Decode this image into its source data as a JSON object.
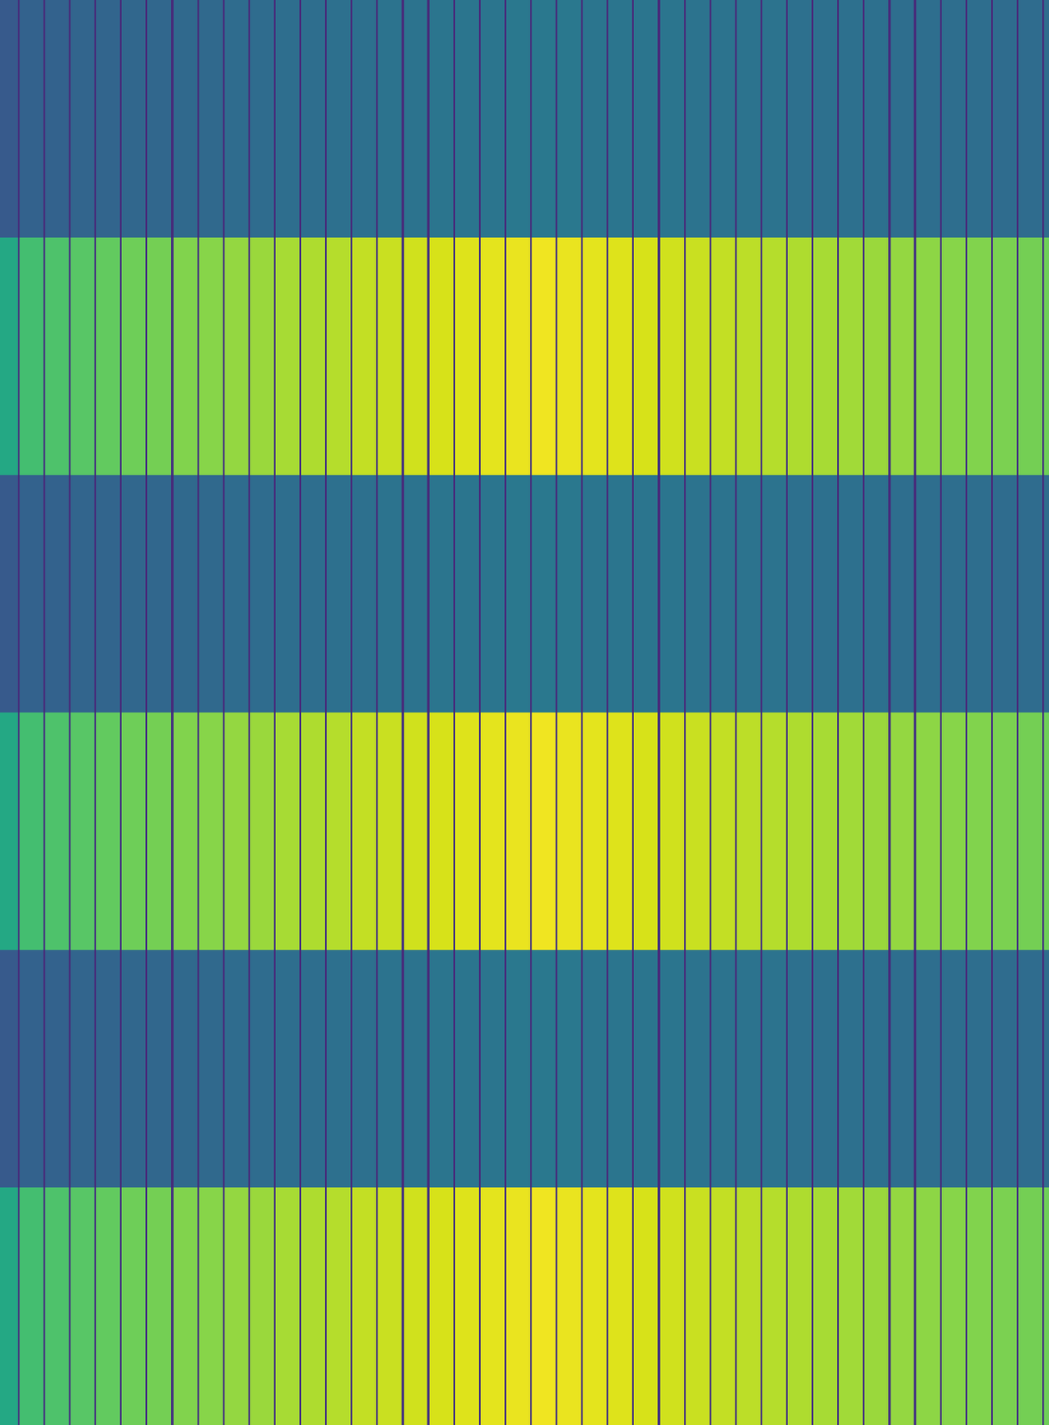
{
  "chart_data": {
    "type": "heatmap",
    "color": "Viridis",
    "tick_labels": false,
    "xlim": [
      0,
      1155
    ],
    "ylim": [
      -0.5,
      5.5
    ],
    "zlim": [
      0,
      1
    ],
    "x": [
      0,
      19.5,
      21.5,
      47.7,
      49.7,
      75.9,
      77.9,
      104.1,
      106.1,
      132.3,
      134.3,
      160.5,
      162.5,
      188.7,
      190.7,
      216.9,
      218.9,
      245.1,
      247.1,
      273.3,
      275.3,
      301.5,
      303.5,
      329.7,
      331.7,
      357.9,
      359.9,
      386.1,
      388.1,
      414.3,
      416.3,
      442.5,
      444.5,
      470.7,
      472.7,
      498.9,
      500.9,
      527.1,
      529.1,
      555.3,
      557.3,
      583.5,
      585.5,
      611.7,
      613.7,
      639.9,
      641.9,
      668.1,
      670.1,
      696.3,
      698.3,
      724.5,
      726.5,
      752.7,
      754.7,
      780.9,
      782.9,
      809.1,
      811.1,
      837.3,
      839.3,
      865.5,
      867.5,
      893.7,
      895.7,
      921.9,
      923.9,
      950.1,
      952.1,
      978.3,
      980.3,
      1006.5,
      1008.5,
      1034.7,
      1036.7,
      1062.9,
      1064.9,
      1091.1,
      1093.1,
      1119.3,
      1121.3,
      1147.5,
      1149.5,
      1155
    ],
    "cells": [
      [
        0.28,
        0.12,
        0.31,
        0.12,
        0.31,
        0.12,
        0.32,
        0.12,
        0.32,
        0.12,
        0.33,
        0.12,
        0.33,
        0.12,
        0.34,
        0.12,
        0.34,
        0.12,
        0.35,
        0.12,
        0.35,
        0.12,
        0.36,
        0.12,
        0.36,
        0.12,
        0.37,
        0.12,
        0.37,
        0.12,
        0.38,
        0.12,
        0.38,
        0.12,
        0.39,
        0.12,
        0.39,
        0.12,
        0.39,
        0.12,
        0.4,
        0.12,
        0.4,
        0.12,
        0.4,
        0.12,
        0.39,
        0.12,
        0.39,
        0.12,
        0.39,
        0.12,
        0.39,
        0.12,
        0.38,
        0.12,
        0.38,
        0.12,
        0.38,
        0.12,
        0.38,
        0.12,
        0.37,
        0.12,
        0.37,
        0.12,
        0.37,
        0.12,
        0.37,
        0.12,
        0.36,
        0.12,
        0.36,
        0.12,
        0.36,
        0.12,
        0.36,
        0.12,
        0.35,
        0.12,
        0.35,
        0.12,
        0.35
      ],
      [
        0.6,
        0.15,
        0.7,
        0.15,
        0.72,
        0.15,
        0.74,
        0.15,
        0.76,
        0.15,
        0.78,
        0.15,
        0.79,
        0.15,
        0.81,
        0.15,
        0.82,
        0.15,
        0.84,
        0.15,
        0.85,
        0.15,
        0.87,
        0.15,
        0.88,
        0.15,
        0.89,
        0.15,
        0.91,
        0.15,
        0.92,
        0.15,
        0.93,
        0.15,
        0.94,
        0.15,
        0.95,
        0.15,
        0.96,
        0.15,
        0.97,
        0.15,
        0.98,
        0.15,
        0.97,
        0.15,
        0.96,
        0.15,
        0.95,
        0.15,
        0.94,
        0.15,
        0.93,
        0.15,
        0.92,
        0.15,
        0.91,
        0.15,
        0.9,
        0.15,
        0.89,
        0.15,
        0.88,
        0.15,
        0.87,
        0.15,
        0.86,
        0.15,
        0.85,
        0.15,
        0.84,
        0.15,
        0.83,
        0.15,
        0.82,
        0.15,
        0.81,
        0.15,
        0.8,
        0.15,
        0.79,
        0.15,
        0.78
      ],
      [
        0.28,
        0.12,
        0.31,
        0.12,
        0.31,
        0.12,
        0.32,
        0.12,
        0.32,
        0.12,
        0.33,
        0.12,
        0.33,
        0.12,
        0.34,
        0.12,
        0.34,
        0.12,
        0.35,
        0.12,
        0.35,
        0.12,
        0.36,
        0.12,
        0.36,
        0.12,
        0.37,
        0.12,
        0.37,
        0.12,
        0.38,
        0.12,
        0.38,
        0.12,
        0.39,
        0.12,
        0.39,
        0.12,
        0.39,
        0.12,
        0.4,
        0.12,
        0.4,
        0.12,
        0.4,
        0.12,
        0.39,
        0.12,
        0.39,
        0.12,
        0.39,
        0.12,
        0.39,
        0.12,
        0.38,
        0.12,
        0.38,
        0.12,
        0.38,
        0.12,
        0.38,
        0.12,
        0.37,
        0.12,
        0.37,
        0.12,
        0.37,
        0.12,
        0.37,
        0.12,
        0.36,
        0.12,
        0.36,
        0.12,
        0.36,
        0.12,
        0.36,
        0.12,
        0.35,
        0.12,
        0.35,
        0.12,
        0.35
      ],
      [
        0.6,
        0.15,
        0.7,
        0.15,
        0.72,
        0.15,
        0.74,
        0.15,
        0.76,
        0.15,
        0.78,
        0.15,
        0.79,
        0.15,
        0.81,
        0.15,
        0.82,
        0.15,
        0.84,
        0.15,
        0.85,
        0.15,
        0.87,
        0.15,
        0.88,
        0.15,
        0.89,
        0.15,
        0.91,
        0.15,
        0.92,
        0.15,
        0.93,
        0.15,
        0.94,
        0.15,
        0.95,
        0.15,
        0.96,
        0.15,
        0.97,
        0.15,
        0.98,
        0.15,
        0.97,
        0.15,
        0.96,
        0.15,
        0.95,
        0.15,
        0.94,
        0.15,
        0.93,
        0.15,
        0.92,
        0.15,
        0.91,
        0.15,
        0.9,
        0.15,
        0.89,
        0.15,
        0.88,
        0.15,
        0.87,
        0.15,
        0.86,
        0.15,
        0.85,
        0.15,
        0.84,
        0.15,
        0.83,
        0.15,
        0.82,
        0.15,
        0.81,
        0.15,
        0.8,
        0.15,
        0.79,
        0.15,
        0.78
      ],
      [
        0.28,
        0.12,
        0.31,
        0.12,
        0.31,
        0.12,
        0.32,
        0.12,
        0.32,
        0.12,
        0.33,
        0.12,
        0.33,
        0.12,
        0.34,
        0.12,
        0.34,
        0.12,
        0.35,
        0.12,
        0.35,
        0.12,
        0.36,
        0.12,
        0.36,
        0.12,
        0.37,
        0.12,
        0.37,
        0.12,
        0.38,
        0.12,
        0.38,
        0.12,
        0.39,
        0.12,
        0.39,
        0.12,
        0.39,
        0.12,
        0.4,
        0.12,
        0.4,
        0.12,
        0.4,
        0.12,
        0.39,
        0.12,
        0.39,
        0.12,
        0.39,
        0.12,
        0.39,
        0.12,
        0.38,
        0.12,
        0.38,
        0.12,
        0.38,
        0.12,
        0.38,
        0.12,
        0.37,
        0.12,
        0.37,
        0.12,
        0.37,
        0.12,
        0.37,
        0.12,
        0.36,
        0.12,
        0.36,
        0.12,
        0.36,
        0.12,
        0.36,
        0.12,
        0.35,
        0.12,
        0.35,
        0.12,
        0.35
      ],
      [
        0.6,
        0.15,
        0.7,
        0.15,
        0.72,
        0.15,
        0.74,
        0.15,
        0.76,
        0.15,
        0.78,
        0.15,
        0.79,
        0.15,
        0.81,
        0.15,
        0.82,
        0.15,
        0.84,
        0.15,
        0.85,
        0.15,
        0.87,
        0.15,
        0.88,
        0.15,
        0.89,
        0.15,
        0.91,
        0.15,
        0.92,
        0.15,
        0.93,
        0.15,
        0.94,
        0.15,
        0.95,
        0.15,
        0.96,
        0.15,
        0.97,
        0.15,
        0.98,
        0.15,
        0.97,
        0.15,
        0.96,
        0.15,
        0.95,
        0.15,
        0.94,
        0.15,
        0.93,
        0.15,
        0.92,
        0.15,
        0.91,
        0.15,
        0.9,
        0.15,
        0.89,
        0.15,
        0.88,
        0.15,
        0.87,
        0.15,
        0.86,
        0.15,
        0.85,
        0.15,
        0.84,
        0.15,
        0.83,
        0.15,
        0.82,
        0.15,
        0.81,
        0.15,
        0.8,
        0.15,
        0.79,
        0.15,
        0.78
      ]
    ]
  }
}
